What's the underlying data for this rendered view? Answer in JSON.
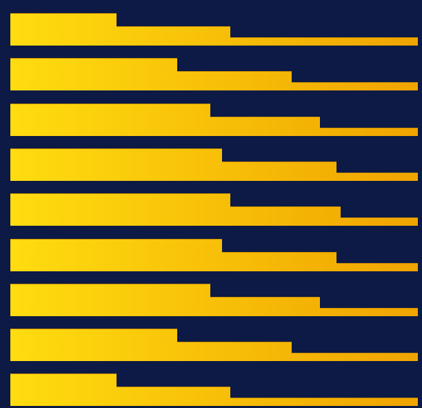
{
  "colors": {
    "background": "#0c1a45",
    "gradient_start": "#ffdc10",
    "gradient_end": "#f0a400",
    "edge": "#c98e00"
  },
  "artwork": {
    "description_name": "stepped-bar-pattern",
    "rows": [
      {
        "steps": [
          0.26,
          0.54,
          1.0
        ]
      },
      {
        "steps": [
          0.41,
          0.69,
          1.0
        ]
      },
      {
        "steps": [
          0.49,
          0.76,
          1.0
        ]
      },
      {
        "steps": [
          0.52,
          0.8,
          1.0
        ]
      },
      {
        "steps": [
          0.54,
          0.81,
          1.0
        ]
      },
      {
        "steps": [
          0.52,
          0.8,
          1.0
        ]
      },
      {
        "steps": [
          0.49,
          0.76,
          1.0
        ]
      },
      {
        "steps": [
          0.41,
          0.69,
          1.0
        ]
      },
      {
        "steps": [
          0.26,
          0.54,
          1.0
        ]
      }
    ]
  }
}
